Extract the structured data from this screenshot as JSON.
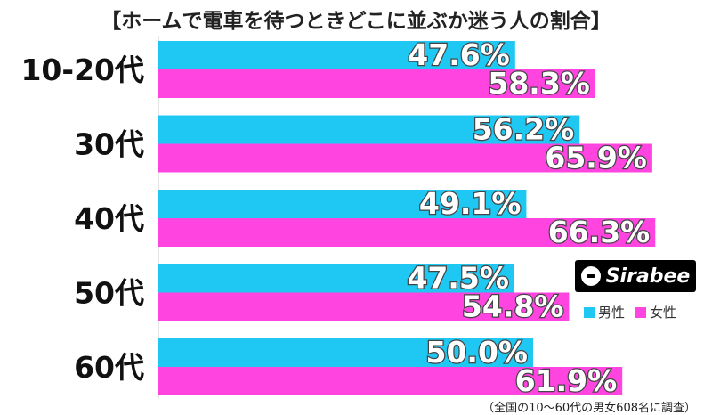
{
  "chart_data": {
    "type": "bar",
    "orientation": "horizontal",
    "title": "【ホームで電車を待つときどこに並ぶか迷う人の割合】",
    "categories": [
      "10-20代",
      "30代",
      "40代",
      "50代",
      "60代"
    ],
    "series": [
      {
        "name": "男性",
        "color": "#1EC8F2",
        "values": [
          47.6,
          56.2,
          49.1,
          47.5,
          50.0
        ],
        "labels": [
          "47.6%",
          "56.2%",
          "49.1%",
          "47.5%",
          "50.0%"
        ]
      },
      {
        "name": "女性",
        "color": "#FF44E0",
        "values": [
          58.3,
          65.9,
          66.3,
          54.8,
          61.9
        ],
        "labels": [
          "58.3%",
          "65.9%",
          "66.3%",
          "54.8%",
          "61.9%"
        ]
      }
    ],
    "xlim": [
      0,
      100
    ],
    "grid": false,
    "legend": "bottom-right"
  },
  "logo_text": "Sirabee",
  "source": "（全国の10～60代の男女608名に調査）"
}
